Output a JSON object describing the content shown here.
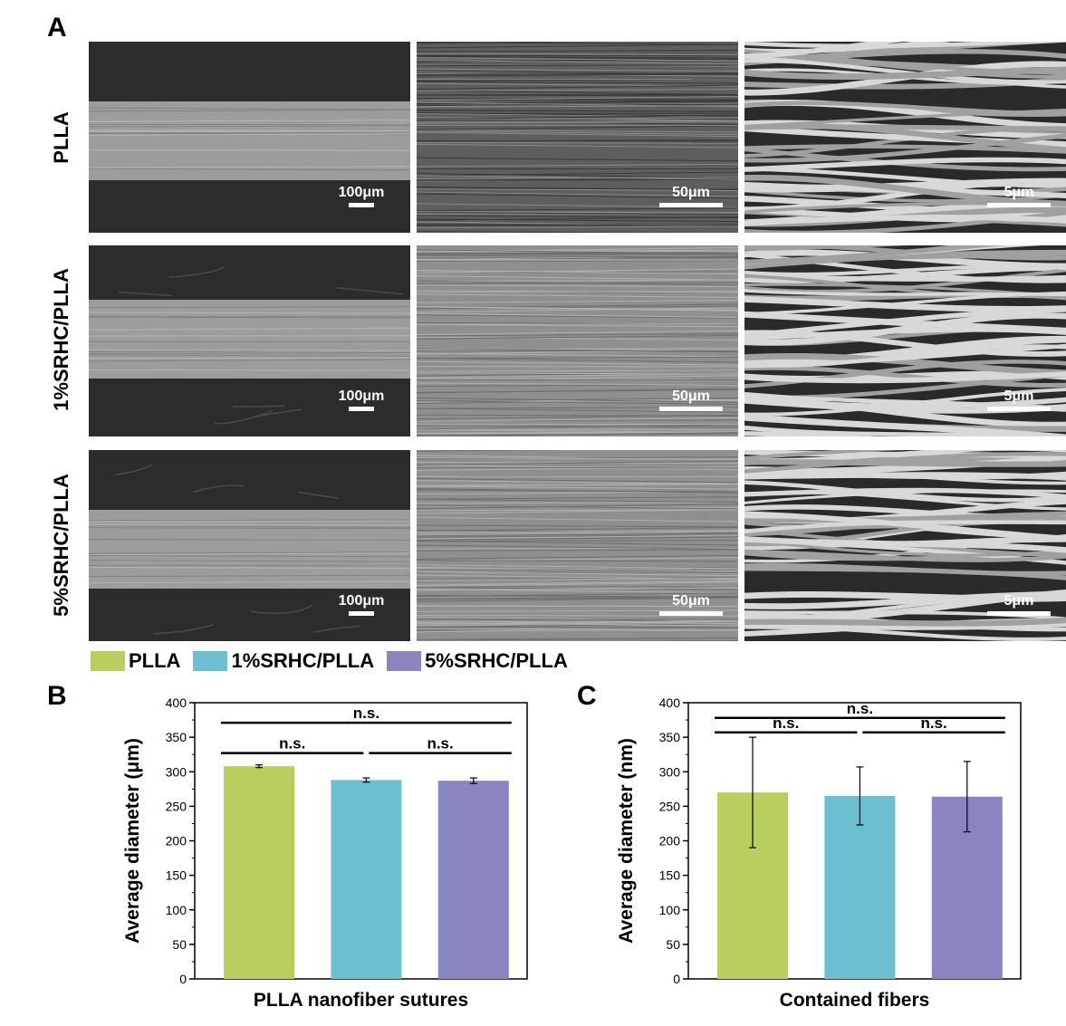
{
  "panels": {
    "A": "A",
    "B": "B",
    "C": "C"
  },
  "rows": [
    {
      "label": "PLLA",
      "scales": [
        "100μm",
        "50μm",
        "5μm"
      ]
    },
    {
      "label": "1%SRHC/PLLA",
      "scales": [
        "100μm",
        "50μm",
        "5μm"
      ]
    },
    {
      "label": "5%SRHC/PLLA",
      "scales": [
        "100μm",
        "50μm",
        "5μm"
      ]
    }
  ],
  "legend": [
    {
      "name": "PLLA",
      "color": "#b7cf5f"
    },
    {
      "name": "1%SRHC/PLLA",
      "color": "#6cbfd1"
    },
    {
      "name": "5%SRHC/PLLA",
      "color": "#8a85c1"
    }
  ],
  "chart_data": [
    {
      "type": "bar",
      "panel": "B",
      "categories": [
        "PLLA",
        "1%SRHC/PLLA",
        "5%SRHC/PLLA"
      ],
      "values": [
        308,
        288,
        287
      ],
      "errors": [
        2,
        3,
        4
      ],
      "colors": [
        "#b7cf5f",
        "#6cbfd1",
        "#8a85c1"
      ],
      "xlabel": "PLLA nanofiber sutures",
      "ylabel": "Average diameter (μm)",
      "ylim": [
        0,
        400
      ],
      "yticks": [
        0,
        50,
        100,
        150,
        200,
        250,
        300,
        350,
        400
      ],
      "annotations": [
        {
          "text": "n.s.",
          "from": 0,
          "to": 2,
          "y": 371
        },
        {
          "text": "n.s.",
          "from": 0,
          "to": 1,
          "y": 327
        },
        {
          "text": "n.s.",
          "from": 1,
          "to": 2,
          "y": 327
        }
      ]
    },
    {
      "type": "bar",
      "panel": "C",
      "categories": [
        "PLLA",
        "1%SRHC/PLLA",
        "5%SRHC/PLLA"
      ],
      "values": [
        270,
        265,
        264
      ],
      "errors": [
        80,
        42,
        51
      ],
      "colors": [
        "#b7cf5f",
        "#6cbfd1",
        "#8a85c1"
      ],
      "xlabel": "Contained fibers",
      "ylabel": "Average diameter (nm)",
      "ylim": [
        0,
        400
      ],
      "yticks": [
        0,
        50,
        100,
        150,
        200,
        250,
        300,
        350,
        400
      ],
      "annotations": [
        {
          "text": "n.s.",
          "from": 0,
          "to": 2,
          "y": 378
        },
        {
          "text": "n.s.",
          "from": 0,
          "to": 1,
          "y": 357
        },
        {
          "text": "n.s.",
          "from": 1,
          "to": 2,
          "y": 357
        }
      ]
    }
  ]
}
